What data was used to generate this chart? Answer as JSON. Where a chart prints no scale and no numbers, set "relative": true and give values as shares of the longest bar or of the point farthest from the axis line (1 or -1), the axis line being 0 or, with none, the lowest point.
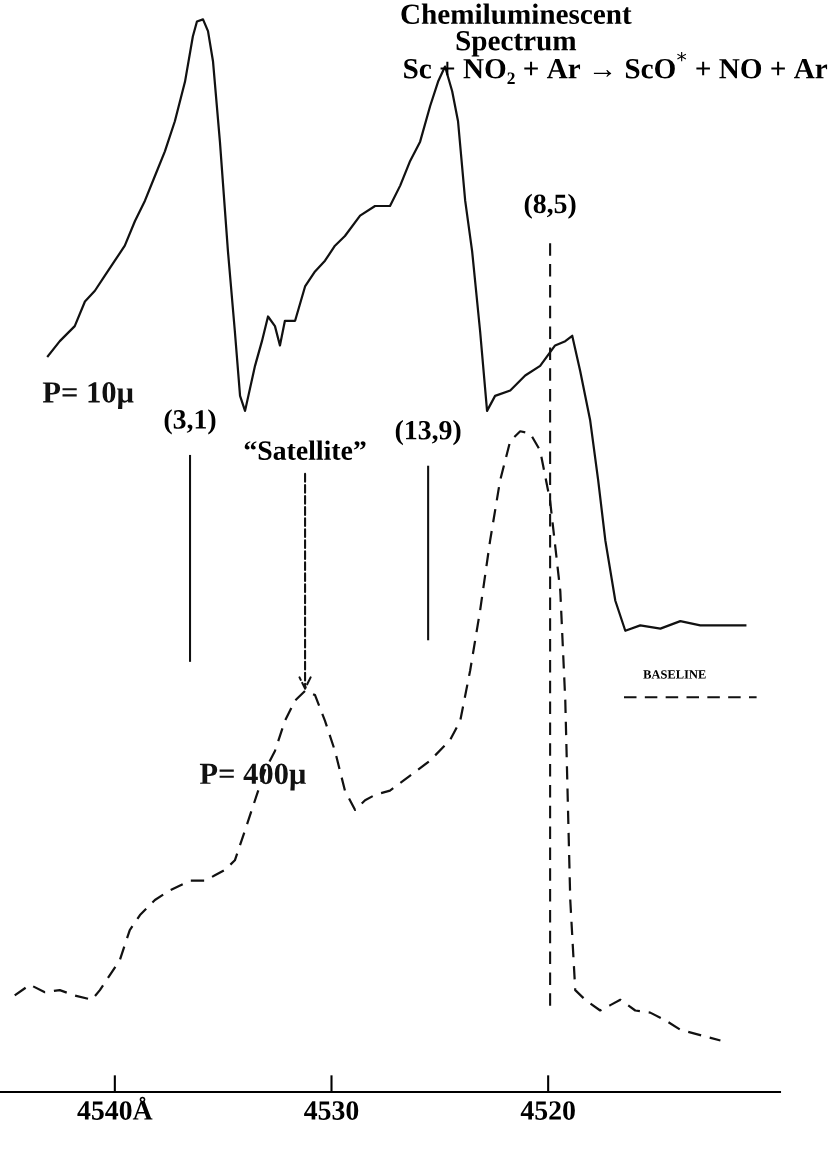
{
  "chart_data": {
    "type": "line",
    "title": "Chemiluminescent\nSpectrum",
    "subtitle": "Sc + NO₂ + Ar → ScO$^{*}$ + NO + Ar",
    "relative": true,
    "legend": false,
    "xlim": [
      4545.3,
      4509.3
    ],
    "xticks": [
      {
        "value": 4540,
        "label": "4540Å"
      },
      4530,
      4520
    ],
    "series": [
      {
        "name": "P= 10μ",
        "color": "#111111",
        "line_style": "solid",
        "x": [
          4543.09,
          4542.54,
          4541.85,
          4541.38,
          4540.92,
          4540.46,
          4540.0,
          4539.54,
          4539.07,
          4538.61,
          4538.15,
          4537.69,
          4537.23,
          4536.76,
          4536.4,
          4536.21,
          4535.93,
          4535.7,
          4535.47,
          4535.15,
          4534.78,
          4534.46,
          4534.22,
          4533.99,
          4533.53,
          4533.21,
          4532.93,
          4532.61,
          4532.38,
          4532.15,
          4531.68,
          4531.22,
          4530.76,
          4530.3,
          4529.84,
          4529.38,
          4528.68,
          4527.99,
          4527.3,
          4526.83,
          4526.37,
          4525.91,
          4525.45,
          4525.08,
          4524.76,
          4524.43,
          4524.16,
          4523.83,
          4523.51,
          4523.14,
          4522.82,
          4522.45,
          4521.75,
          4521.06,
          4520.37,
          4519.68,
          4519.21,
          4518.89,
          4518.52,
          4518.06,
          4517.69,
          4517.36,
          4516.9,
          4516.44,
          4515.75,
          4514.82,
          4513.9,
          4512.98,
          4512.05,
          4510.9
        ],
        "values": [
          0.686,
          0.7,
          0.714,
          0.737,
          0.747,
          0.761,
          0.775,
          0.789,
          0.812,
          0.831,
          0.854,
          0.877,
          0.905,
          0.942,
          0.984,
          0.998,
          1.0,
          0.989,
          0.961,
          0.886,
          0.784,
          0.709,
          0.649,
          0.635,
          0.677,
          0.7,
          0.723,
          0.714,
          0.696,
          0.719,
          0.719,
          0.751,
          0.765,
          0.775,
          0.789,
          0.798,
          0.817,
          0.826,
          0.826,
          0.845,
          0.868,
          0.886,
          0.919,
          0.942,
          0.956,
          0.933,
          0.905,
          0.831,
          0.784,
          0.709,
          0.635,
          0.649,
          0.654,
          0.668,
          0.677,
          0.696,
          0.7,
          0.705,
          0.672,
          0.626,
          0.57,
          0.514,
          0.458,
          0.43,
          0.435,
          0.432,
          0.439,
          0.435,
          0.435,
          0.435
        ]
      },
      {
        "name": "P= 400μ",
        "color": "#111111",
        "line_style": "dashed",
        "x": [
          4544.62,
          4543.92,
          4543.23,
          4542.54,
          4541.85,
          4541.06,
          4540.69,
          4540.23,
          4539.77,
          4539.31,
          4538.84,
          4538.15,
          4537.46,
          4536.53,
          4535.84,
          4535.38,
          4534.92,
          4534.46,
          4533.99,
          4533.53,
          4533.07,
          4532.61,
          4532.15,
          4531.68,
          4531.22,
          4530.76,
          4530.3,
          4529.84,
          4529.38,
          4528.91,
          4528.45,
          4527.99,
          4527.3,
          4526.37,
          4525.45,
          4524.53,
          4524.06,
          4523.6,
          4523.14,
          4522.68,
          4522.22,
          4521.75,
          4521.29,
          4520.83,
          4520.37,
          4519.91,
          4519.44,
          4519.21,
          4518.98,
          4518.75,
          4518.29,
          4517.6,
          4517.13,
          4516.67,
          4515.98,
          4515.29,
          4514.6,
          4513.9,
          4512.98,
          4512.05
        ],
        "values": [
          0.09,
          0.1,
          0.093,
          0.095,
          0.09,
          0.086,
          0.095,
          0.109,
          0.123,
          0.151,
          0.165,
          0.179,
          0.188,
          0.197,
          0.197,
          0.202,
          0.207,
          0.216,
          0.244,
          0.272,
          0.3,
          0.318,
          0.346,
          0.365,
          0.374,
          0.37,
          0.346,
          0.318,
          0.281,
          0.263,
          0.272,
          0.277,
          0.281,
          0.295,
          0.309,
          0.328,
          0.346,
          0.393,
          0.449,
          0.514,
          0.57,
          0.607,
          0.616,
          0.614,
          0.598,
          0.551,
          0.467,
          0.365,
          0.179,
          0.095,
          0.086,
          0.076,
          0.081,
          0.086,
          0.076,
          0.074,
          0.067,
          0.058,
          0.053,
          0.048
        ]
      }
    ],
    "ref_lines": [
      {
        "axis": "x",
        "value": 4519.91,
        "line_style": "dashed"
      },
      {
        "axis": "x",
        "value": 4525.54,
        "line_style": "solid"
      },
      {
        "axis": "x",
        "value": 4536.53,
        "line_style": "solid"
      },
      {
        "axis": "y",
        "value": 0.368,
        "label": "BASELINE",
        "line_style": "dashed"
      }
    ],
    "annotations": [
      {
        "text": "“Satellite”",
        "x": 4531.22,
        "y": 0.374
      },
      "(8,5)",
      "(13,9)",
      "(3,1)"
    ]
  }
}
